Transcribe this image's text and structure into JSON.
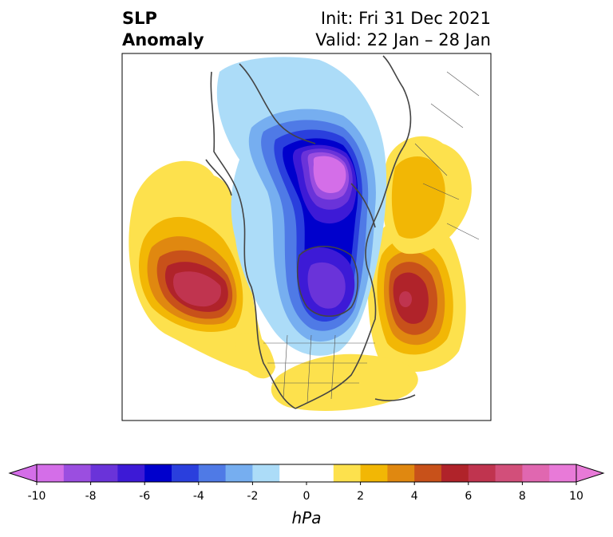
{
  "title": {
    "left_line1": "SLP",
    "left_line2": "Anomaly",
    "right_line1": "Init: Fri 31 Dec 2021",
    "right_line2": "Valid: 22 Jan – 28 Jan"
  },
  "colorbar": {
    "unit": "hPa",
    "min": -10,
    "max": 10,
    "step": 1,
    "extend": "both",
    "tick_labels": [
      "-10",
      "-8",
      "-6",
      "-4",
      "-2",
      "0",
      "2",
      "4",
      "6",
      "8",
      "10"
    ],
    "colors": [
      "#d46ee8",
      "#9b4ee0",
      "#6a33d9",
      "#3d1ad6",
      "#0000cc",
      "#2a3fdd",
      "#4f7ae6",
      "#76aef0",
      "#acdcf8",
      "#ffffff",
      "#ffffff",
      "#fde14d",
      "#f2b705",
      "#e08810",
      "#c8511a",
      "#b0232a",
      "#c0344f",
      "#d24f7a",
      "#e067b0",
      "#e87ad8"
    ]
  },
  "map": {
    "projection": "north polar stereographic",
    "field": "sea level pressure anomaly",
    "anomalies": [
      {
        "name": "arctic-low",
        "sign": "negative",
        "peak_hpa": -10
      },
      {
        "name": "hudson-bay-low",
        "sign": "negative",
        "peak_hpa": -7
      },
      {
        "name": "north-pacific-high",
        "sign": "positive",
        "peak_hpa": 8
      },
      {
        "name": "north-atlantic-high",
        "sign": "positive",
        "peak_hpa": 7
      },
      {
        "name": "scandinavia-high",
        "sign": "positive",
        "peak_hpa": 3
      },
      {
        "name": "southeast-us-high",
        "sign": "positive",
        "peak_hpa": 2
      }
    ]
  }
}
